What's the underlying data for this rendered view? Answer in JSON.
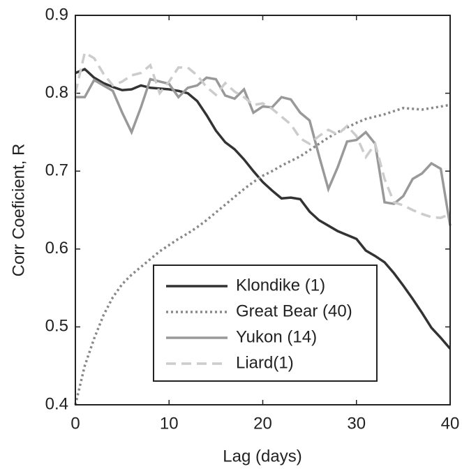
{
  "chart_data": {
    "type": "line",
    "xlabel": "Lag (days)",
    "ylabel": "Corr Coeficient, R",
    "x": [
      0,
      1,
      2,
      3,
      4,
      5,
      6,
      7,
      8,
      9,
      10,
      11,
      12,
      13,
      14,
      15,
      16,
      17,
      18,
      19,
      20,
      21,
      22,
      23,
      24,
      25,
      26,
      27,
      28,
      29,
      30,
      31,
      32,
      33,
      34,
      35,
      36,
      37,
      38,
      39,
      40
    ],
    "series": [
      {
        "name": "Klondike (1)",
        "color": "#333333",
        "dash": "solid",
        "values": [
          0.826,
          0.831,
          0.82,
          0.813,
          0.808,
          0.804,
          0.805,
          0.81,
          0.807,
          0.806,
          0.805,
          0.803,
          0.8,
          0.79,
          0.772,
          0.752,
          0.737,
          0.728,
          0.715,
          0.7,
          0.686,
          0.675,
          0.665,
          0.666,
          0.664,
          0.648,
          0.637,
          0.63,
          0.623,
          0.618,
          0.613,
          0.598,
          0.591,
          0.583,
          0.569,
          0.553,
          0.536,
          0.518,
          0.499,
          0.486,
          0.472
        ]
      },
      {
        "name": "Great Bear (40)",
        "color": "#888888",
        "dash": "dotted",
        "values": [
          0.4,
          0.45,
          0.485,
          0.515,
          0.538,
          0.555,
          0.567,
          0.577,
          0.587,
          0.597,
          0.605,
          0.613,
          0.62,
          0.628,
          0.637,
          0.647,
          0.657,
          0.667,
          0.677,
          0.686,
          0.694,
          0.7,
          0.707,
          0.713,
          0.719,
          0.727,
          0.735,
          0.743,
          0.75,
          0.756,
          0.762,
          0.767,
          0.77,
          0.773,
          0.777,
          0.781,
          0.78,
          0.779,
          0.781,
          0.783,
          0.785
        ]
      },
      {
        "name": "Yukon (14)",
        "color": "#999999",
        "dash": "solid",
        "values": [
          0.795,
          0.795,
          0.817,
          0.81,
          0.803,
          0.775,
          0.75,
          0.782,
          0.818,
          0.815,
          0.812,
          0.795,
          0.807,
          0.81,
          0.82,
          0.818,
          0.797,
          0.793,
          0.805,
          0.775,
          0.783,
          0.782,
          0.795,
          0.792,
          0.775,
          0.765,
          0.72,
          0.677,
          0.705,
          0.738,
          0.74,
          0.75,
          0.735,
          0.66,
          0.658,
          0.668,
          0.69,
          0.697,
          0.71,
          0.703,
          0.63
        ]
      },
      {
        "name": "Liard(1)",
        "color": "#cccccc",
        "dash": "dashed",
        "values": [
          0.8,
          0.852,
          0.845,
          0.825,
          0.81,
          0.815,
          0.823,
          0.826,
          0.836,
          0.8,
          0.815,
          0.833,
          0.833,
          0.823,
          0.808,
          0.798,
          0.813,
          0.802,
          0.795,
          0.785,
          0.787,
          0.78,
          0.77,
          0.76,
          0.742,
          0.735,
          0.745,
          0.753,
          0.747,
          0.758,
          0.745,
          0.718,
          0.735,
          0.69,
          0.66,
          0.656,
          0.65,
          0.645,
          0.641,
          0.64,
          0.645
        ]
      }
    ],
    "xlim": [
      0,
      40
    ],
    "xticks": [
      0,
      10,
      20,
      30,
      40
    ],
    "ylim": [
      0.4,
      0.9
    ],
    "yticks": [
      0.4,
      0.5,
      0.6,
      0.7,
      0.8,
      0.9
    ],
    "grid": false,
    "legend": "lower left"
  }
}
